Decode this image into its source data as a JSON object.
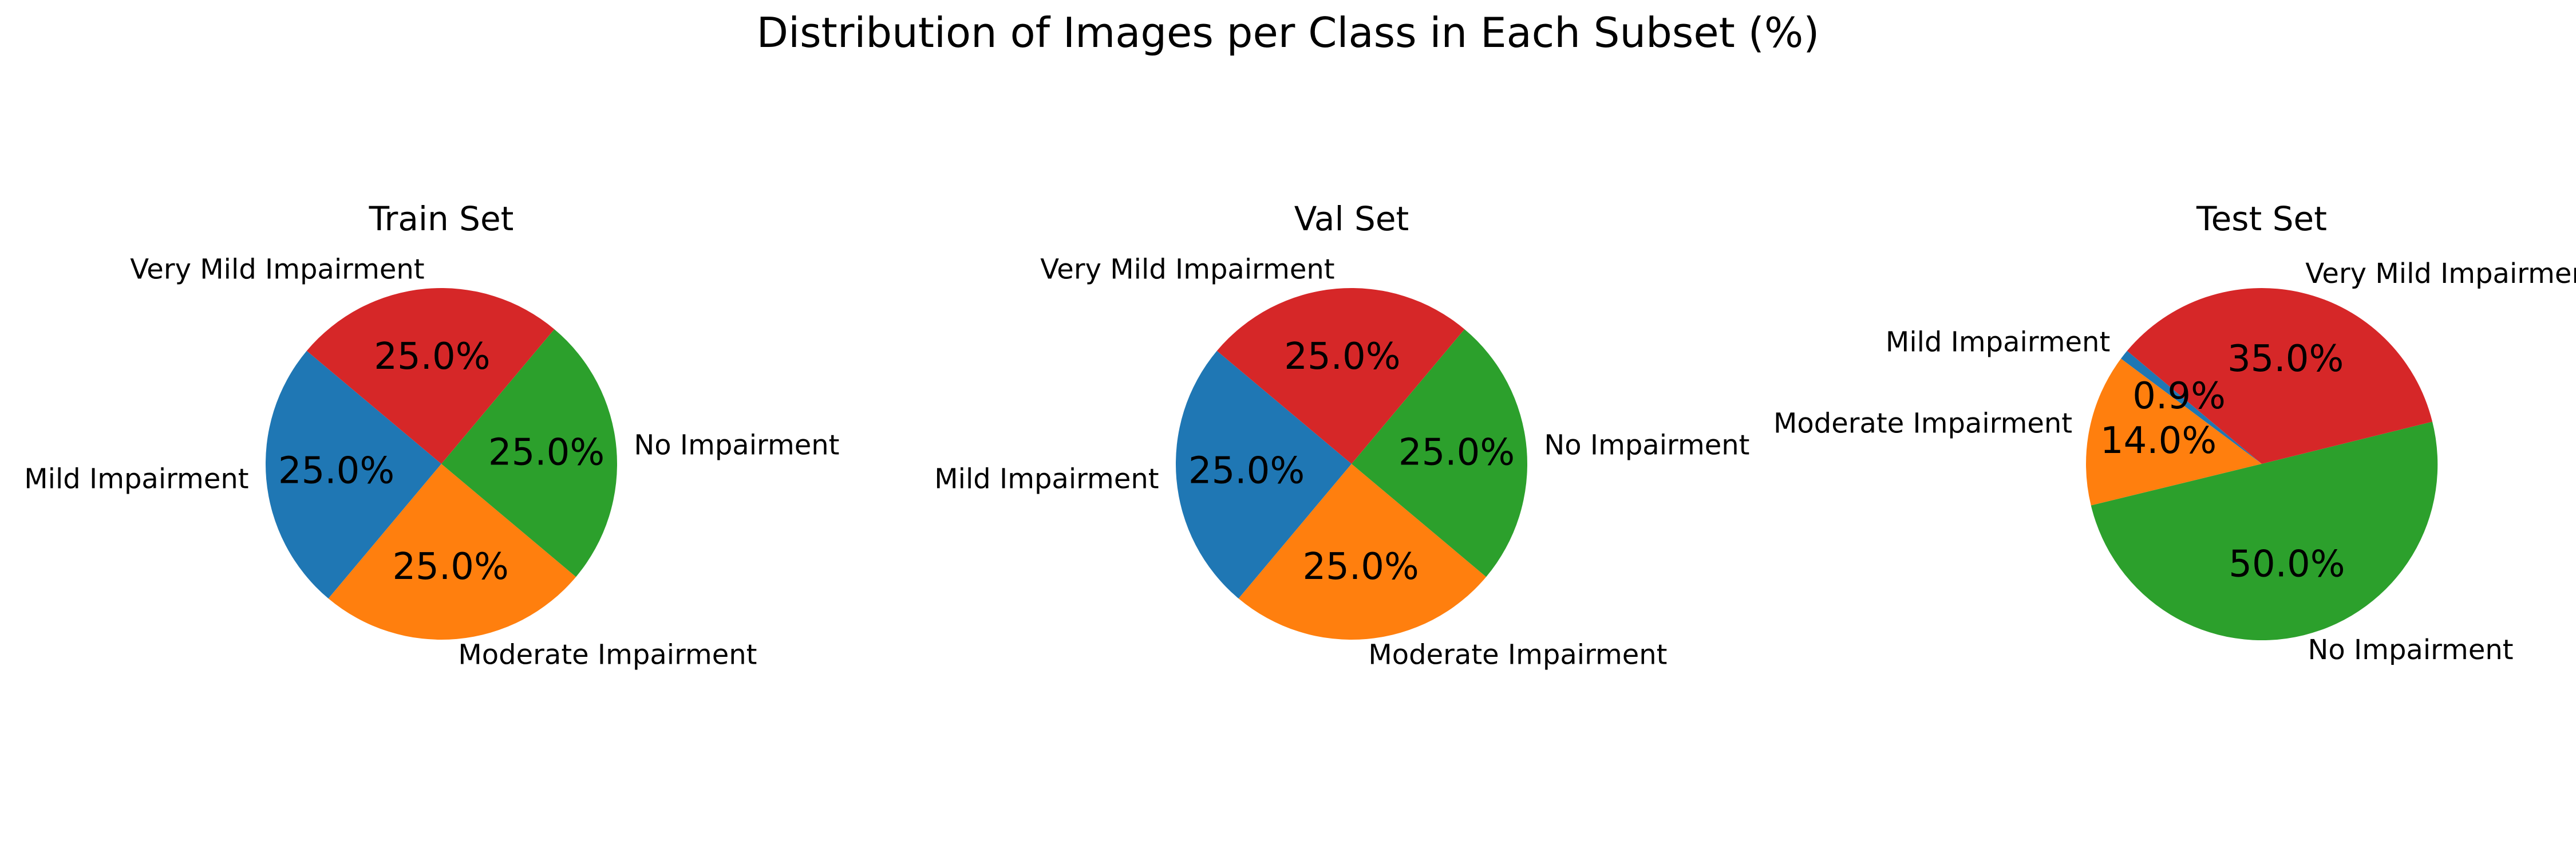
{
  "suptitle": "Distribution of Images per Class in Each Subset (%)",
  "colors": {
    "Mild Impairment": "#1f77b4",
    "Moderate Impairment": "#ff7f0e",
    "No Impairment": "#2ca02c",
    "Very Mild Impairment": "#d62728"
  },
  "chart_data": [
    {
      "type": "pie",
      "title": "Train Set",
      "labels": [
        "Mild Impairment",
        "Moderate Impairment",
        "No Impairment",
        "Very Mild Impairment"
      ],
      "values": [
        25.0,
        25.0,
        25.0,
        25.0
      ],
      "autopct": [
        "25.0%",
        "25.0%",
        "25.0%",
        "25.0%"
      ],
      "start_angle_deg": 140,
      "direction": "counterclockwise"
    },
    {
      "type": "pie",
      "title": "Val Set",
      "labels": [
        "Mild Impairment",
        "Moderate Impairment",
        "No Impairment",
        "Very Mild Impairment"
      ],
      "values": [
        25.0,
        25.0,
        25.0,
        25.0
      ],
      "autopct": [
        "25.0%",
        "25.0%",
        "25.0%",
        "25.0%"
      ],
      "start_angle_deg": 140,
      "direction": "counterclockwise"
    },
    {
      "type": "pie",
      "title": "Test Set",
      "labels": [
        "Mild Impairment",
        "Moderate Impairment",
        "No Impairment",
        "Very Mild Impairment"
      ],
      "values": [
        0.9,
        14.0,
        50.0,
        35.0
      ],
      "autopct": [
        "0.9%",
        "14.0%",
        "50.0%",
        "35.0%"
      ],
      "start_angle_deg": 140,
      "direction": "counterclockwise"
    }
  ]
}
